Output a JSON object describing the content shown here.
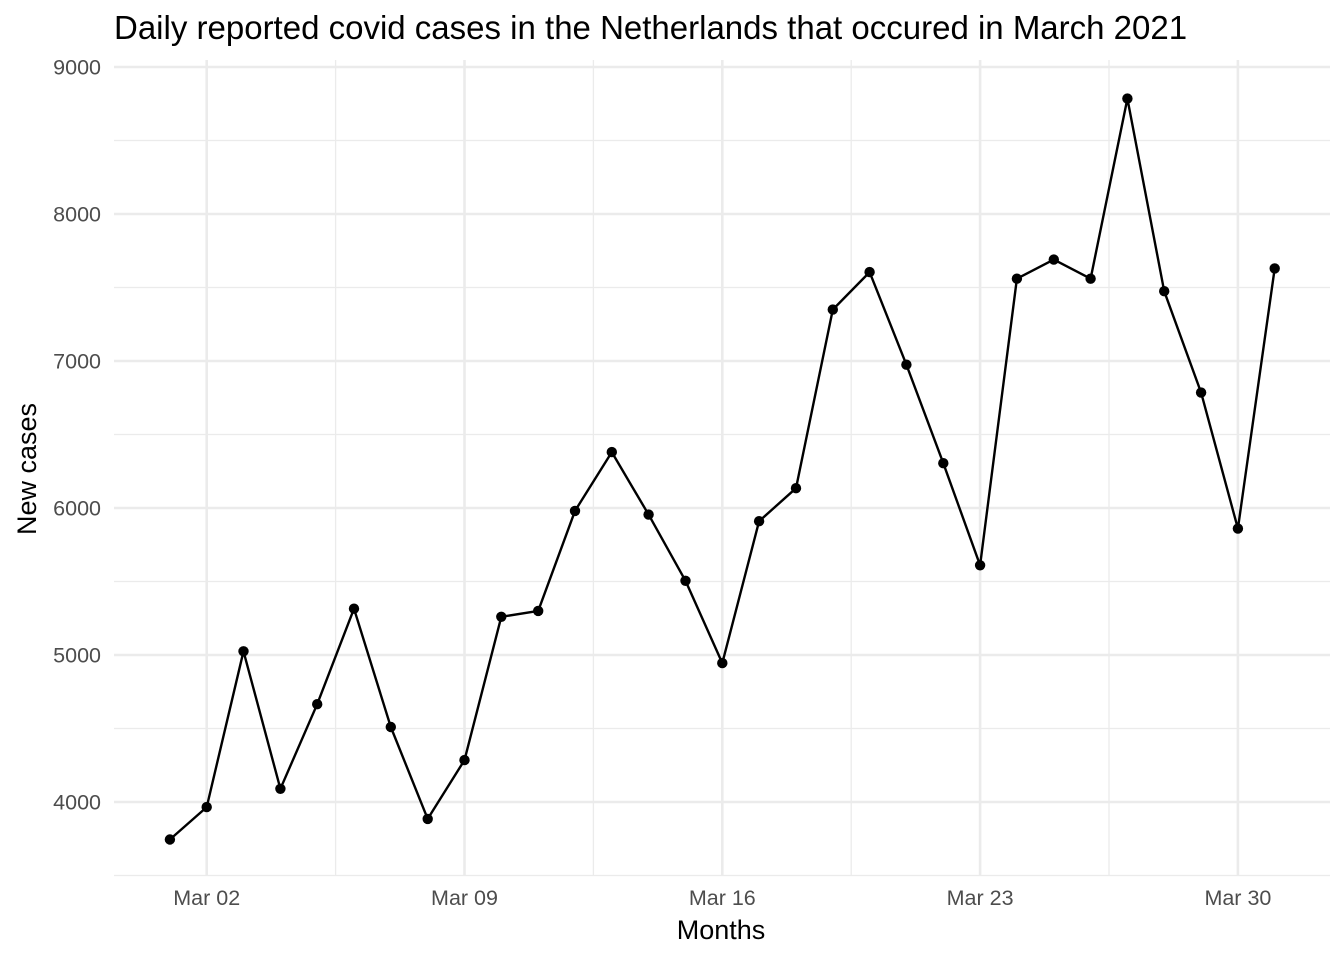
{
  "chart_data": {
    "type": "line",
    "title": "Daily reported covid cases in the Netherlands that occured in March 2021",
    "xlabel": "Months",
    "ylabel": "New cases",
    "x_ticks": [
      {
        "day": 2,
        "label": "Mar 02"
      },
      {
        "day": 9,
        "label": "Mar 09"
      },
      {
        "day": 16,
        "label": "Mar 16"
      },
      {
        "day": 23,
        "label": "Mar 23"
      },
      {
        "day": 30,
        "label": "Mar 30"
      }
    ],
    "y_ticks": [
      4000,
      5000,
      6000,
      7000,
      8000,
      9000
    ],
    "xlim": [
      0.5,
      31.5
    ],
    "ylim": [
      3500,
      9000
    ],
    "grid": true,
    "x": [
      "2021-03-01",
      "2021-03-02",
      "2021-03-03",
      "2021-03-04",
      "2021-03-05",
      "2021-03-06",
      "2021-03-07",
      "2021-03-08",
      "2021-03-09",
      "2021-03-10",
      "2021-03-11",
      "2021-03-12",
      "2021-03-13",
      "2021-03-14",
      "2021-03-15",
      "2021-03-16",
      "2021-03-17",
      "2021-03-18",
      "2021-03-19",
      "2021-03-20",
      "2021-03-21",
      "2021-03-22",
      "2021-03-23",
      "2021-03-24",
      "2021-03-25",
      "2021-03-26",
      "2021-03-27",
      "2021-03-28",
      "2021-03-29",
      "2021-03-30",
      "2021-03-31"
    ],
    "values": [
      3745,
      3965,
      5025,
      4090,
      4665,
      5315,
      4510,
      3885,
      4285,
      5260,
      5300,
      5980,
      6380,
      5955,
      5505,
      4945,
      5910,
      6135,
      7350,
      7605,
      6975,
      6305,
      5610,
      7560,
      7690,
      7560,
      8785,
      7475,
      6785,
      5860,
      7630
    ]
  }
}
